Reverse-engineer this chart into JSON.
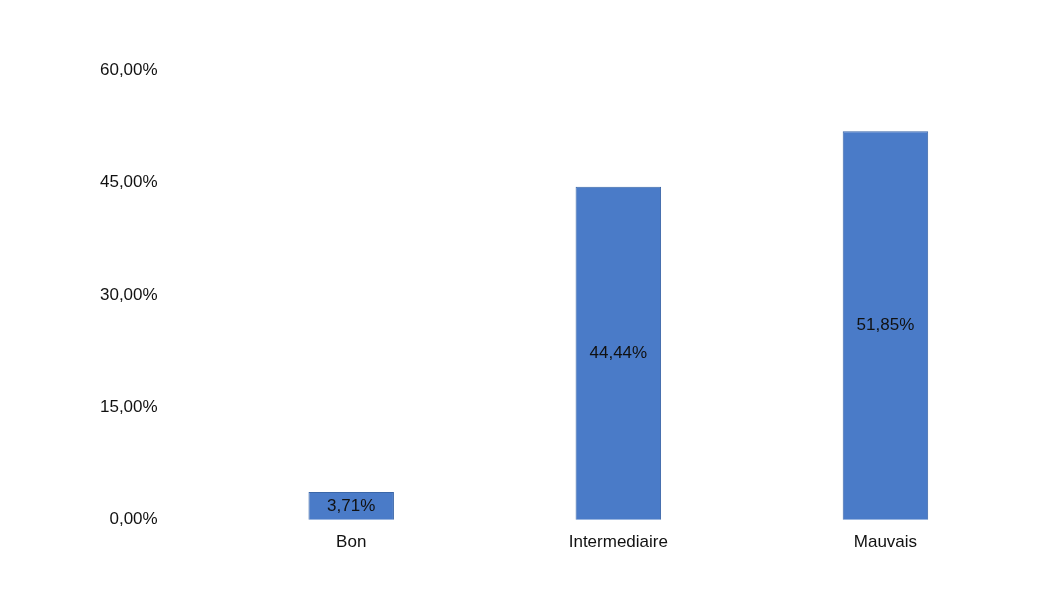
{
  "chart_data": {
    "type": "bar",
    "categories": [
      "Bon",
      "Intermediaire",
      "Mauvais"
    ],
    "values": [
      3.71,
      44.44,
      51.85
    ],
    "value_labels": [
      "3,71%",
      "44,44%",
      "51,85%"
    ],
    "color": "#4a7bc8",
    "ylim": [
      0,
      60
    ],
    "yticks": [
      {
        "value": 0,
        "label": "0,00%"
      },
      {
        "value": 15,
        "label": "15,00%"
      },
      {
        "value": 30,
        "label": "30,00%"
      },
      {
        "value": 45,
        "label": "45,00%"
      },
      {
        "value": 60,
        "label": "60,00%"
      }
    ],
    "grid": false,
    "legend": false
  }
}
